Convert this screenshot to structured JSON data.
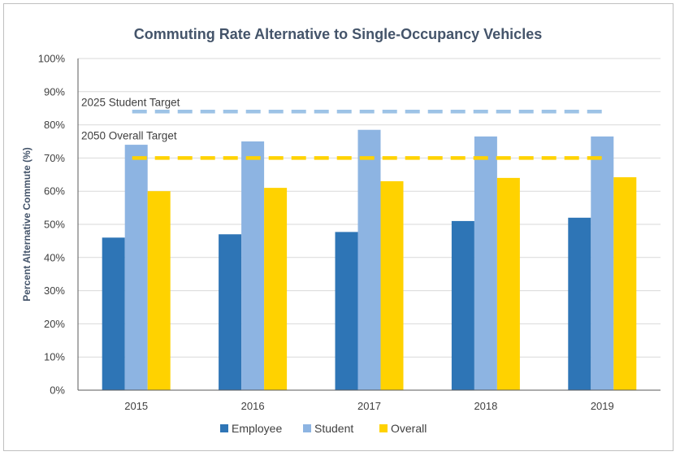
{
  "chart_data": {
    "type": "bar",
    "title": "Commuting Rate Alternative to Single-Occupancy Vehicles",
    "ylabel": "Percent Alternative Commute (%)",
    "xlabel": "",
    "categories": [
      "2015",
      "2016",
      "2017",
      "2018",
      "2019"
    ],
    "ylim": [
      0,
      100
    ],
    "yticks": [
      "0%",
      "10%",
      "20%",
      "30%",
      "40%",
      "50%",
      "60%",
      "70%",
      "80%",
      "90%",
      "100%"
    ],
    "series": [
      {
        "name": "Employee",
        "color": "#2e75b6",
        "values": [
          46,
          47,
          47.7,
          51,
          52
        ]
      },
      {
        "name": "Student",
        "color": "#8db4e2",
        "values": [
          74,
          75,
          78.5,
          76.5,
          76.5
        ]
      },
      {
        "name": "Overall",
        "color": "#ffd200",
        "values": [
          60,
          61,
          63,
          64,
          64.2
        ]
      }
    ],
    "targets": [
      {
        "label": "2025 Student Target",
        "value": 84,
        "color": "#9dc3e6"
      },
      {
        "label": "2050 Overall Target",
        "value": 70,
        "color": "#ffd200"
      }
    ],
    "grid": true,
    "legend": "bottom"
  }
}
